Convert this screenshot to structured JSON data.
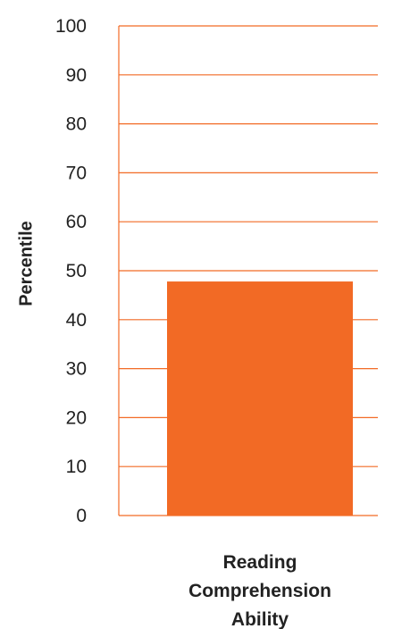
{
  "chart_data": {
    "type": "bar",
    "categories": [
      "Reading Comprehension Ability"
    ],
    "category_label_lines": [
      "Reading",
      "Comprehension",
      "Ability"
    ],
    "values": [
      47.8
    ],
    "ylabel": "Percentile",
    "ylim": [
      0,
      100
    ],
    "yticks": [
      "0",
      "10",
      "20",
      "30",
      "40",
      "50",
      "60",
      "70",
      "80",
      "90",
      "100"
    ],
    "grid": true,
    "colors": {
      "bar": "#F26A25",
      "grid": "#F26A25",
      "text": "#222222"
    }
  }
}
